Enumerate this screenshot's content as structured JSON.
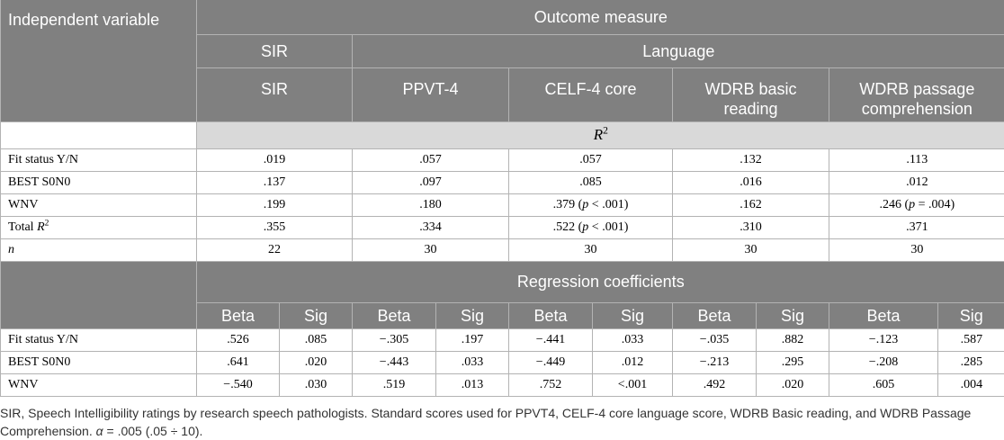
{
  "table": {
    "header": {
      "independent_variable": "Independent variable",
      "outcome_measure": "Outcome measure",
      "group_sir": "SIR",
      "group_language": "Language",
      "measures": [
        "SIR",
        "PPVT-4",
        "CELF-4 core",
        "WDRB basic reading",
        "WDRB passage comprehension"
      ]
    },
    "r2_section": {
      "title": {
        "symbol": "R",
        "power": "2"
      },
      "rows": [
        {
          "label": "Fit status Y/N",
          "values": [
            ".019",
            ".057",
            ".057",
            ".132",
            ".113"
          ]
        },
        {
          "label": "BEST S0N0",
          "values": [
            ".137",
            ".097",
            ".085",
            ".016",
            ".012"
          ]
        },
        {
          "label": "WNV",
          "values": [
            ".199",
            ".180",
            [
              {
                "t": ".379 ("
              },
              {
                "t": "p",
                "i": true
              },
              {
                "t": " < .001)"
              }
            ],
            ".162",
            [
              {
                "t": ".246 ("
              },
              {
                "t": "p",
                "i": true
              },
              {
                "t": " = .004)"
              }
            ]
          ]
        },
        {
          "label": [
            {
              "t": "Total "
            },
            {
              "t": "R",
              "i": true
            },
            {
              "t": "2",
              "sup": true
            }
          ],
          "values": [
            ".355",
            ".334",
            [
              {
                "t": ".522 ("
              },
              {
                "t": "p",
                "i": true
              },
              {
                "t": " < .001)"
              }
            ],
            ".310",
            ".371"
          ]
        },
        {
          "label": [
            {
              "t": "n",
              "i": true
            }
          ],
          "values": [
            "22",
            "30",
            "30",
            "30",
            "30"
          ]
        }
      ]
    },
    "regression_section": {
      "title": "Regression coefficients",
      "subheaders": [
        "Beta",
        "Sig",
        "Beta",
        "Sig",
        "Beta",
        "Sig",
        "Beta",
        "Sig",
        "Beta",
        "Sig"
      ],
      "rows": [
        {
          "label": "Fit status Y/N",
          "values": [
            ".526",
            ".085",
            "−.305",
            ".197",
            "−.441",
            ".033",
            "−.035",
            ".882",
            "−.123",
            ".587"
          ]
        },
        {
          "label": "BEST S0N0",
          "values": [
            ".641",
            ".020",
            "−.443",
            ".033",
            "−.449",
            ".012",
            "−.213",
            ".295",
            "−.208",
            ".285"
          ]
        },
        {
          "label": "WNV",
          "values": [
            "−.540",
            ".030",
            ".519",
            ".013",
            ".752",
            "<.001",
            ".492",
            ".020",
            ".605",
            ".004"
          ]
        }
      ]
    }
  },
  "footnote": [
    {
      "t": "SIR, Speech Intelligibility ratings by research speech pathologists. Standard scores used for PPVT4, CELF-4 core language score, WDRB Basic reading, and WDRB Passage Comprehension. "
    },
    {
      "t": "α",
      "i": true
    },
    {
      "t": " = .005 (.05 ÷ 10)."
    }
  ],
  "colors": {
    "header_bg": "#808080",
    "header_text": "#ffffff",
    "section_bg": "#d9d9d9",
    "rule": "#b3b3b3"
  }
}
